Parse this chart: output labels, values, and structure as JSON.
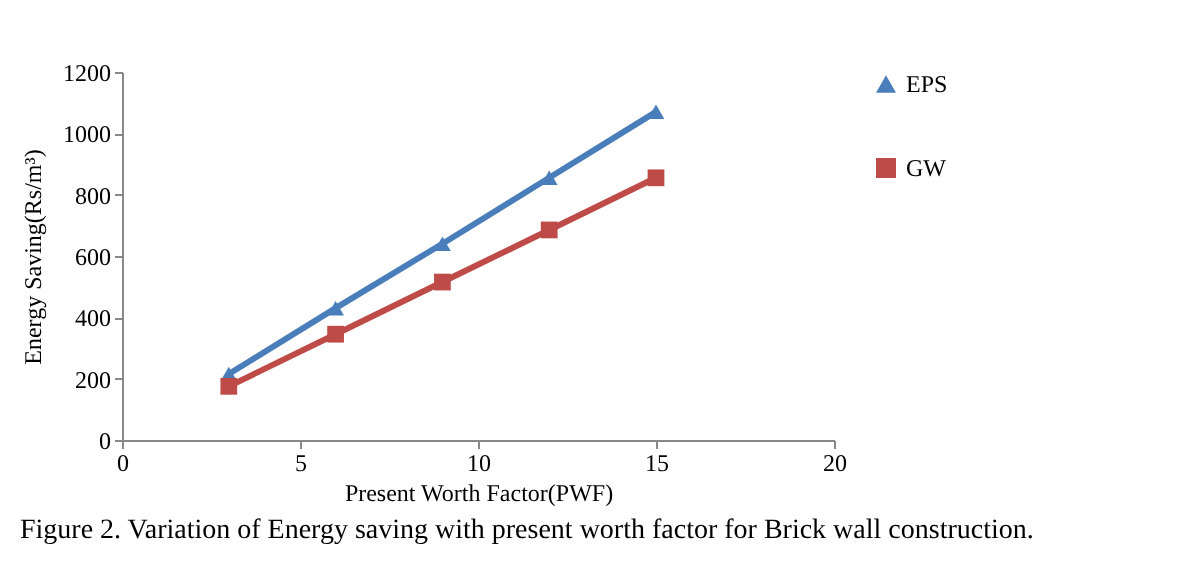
{
  "chart_data": {
    "type": "line",
    "xlabel": "Present Worth Factor(PWF)",
    "ylabel": "Energy Saving(Rs/m³)",
    "annotations": [
      "Figure 2. Variation of Energy saving with present worth factor for Brick wall construction."
    ],
    "x": [
      3,
      6,
      9,
      12,
      15
    ],
    "series": [
      {
        "name": "EPS",
        "color": "#4a7ebb",
        "marker": "triangle",
        "values": [
          215,
          430,
          640,
          855,
          1070
        ]
      },
      {
        "name": "GW",
        "color": "#be4b48",
        "marker": "square",
        "values": [
          175,
          345,
          515,
          685,
          855
        ]
      }
    ],
    "xlim": [
      0,
      20
    ],
    "xticks": [
      0,
      5,
      10,
      15,
      20
    ],
    "ylim": [
      0,
      1200
    ],
    "yticks": [
      0,
      200,
      400,
      600,
      800,
      1000,
      1200
    ],
    "legend": "right",
    "grid": false
  }
}
